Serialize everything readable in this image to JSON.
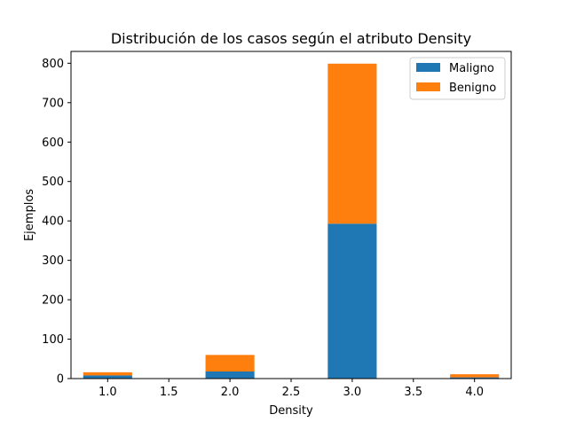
{
  "chart_data": {
    "type": "bar",
    "stacked": true,
    "title": "Distribución de los casos según el atributo Density",
    "xlabel": "Density",
    "ylabel": "Ejemplos",
    "x": [
      1.0,
      2.0,
      3.0,
      4.0
    ],
    "bar_width": 0.4,
    "xlim": [
      0.7,
      4.3
    ],
    "ylim": [
      0,
      830
    ],
    "xticks": [
      1.0,
      1.5,
      2.0,
      2.5,
      3.0,
      3.5,
      4.0
    ],
    "xtick_labels": [
      "1.0",
      "1.5",
      "2.0",
      "2.5",
      "3.0",
      "3.5",
      "4.0"
    ],
    "yticks": [
      0,
      100,
      200,
      300,
      400,
      500,
      600,
      700,
      800
    ],
    "ytick_labels": [
      "0",
      "100",
      "200",
      "300",
      "400",
      "500",
      "600",
      "700",
      "800"
    ],
    "series": [
      {
        "name": "Maligno",
        "color": "#1f77b4",
        "values": [
          8,
          18,
          393,
          3
        ]
      },
      {
        "name": "Benigno",
        "color": "#ff7f0e",
        "values": [
          8,
          42,
          406,
          8
        ]
      }
    ],
    "legend_position": "top-right",
    "grid": false
  }
}
